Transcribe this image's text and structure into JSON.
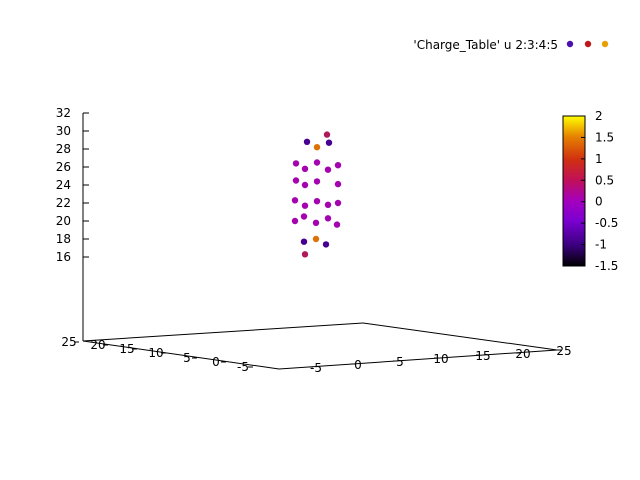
{
  "chart_data": {
    "type": "scatter",
    "subtype": "3d-scatter-colormapped",
    "legend": {
      "label": "'Charge_Table' u 2:3:4:5",
      "position": "top-right"
    },
    "grid": false,
    "x_axis": {
      "range": [
        -8,
        25
      ],
      "ticks": [
        "-5",
        "0",
        "5",
        "10",
        "15",
        "20",
        "25"
      ]
    },
    "y_axis": {
      "range": [
        -8,
        25
      ],
      "ticks": [
        "-5",
        "0",
        "5",
        "10",
        "15",
        "20",
        "25"
      ]
    },
    "z_axis": {
      "range": [
        16,
        32
      ],
      "ticks": [
        "16",
        "18",
        "20",
        "22",
        "24",
        "26",
        "28",
        "30",
        "32"
      ]
    },
    "colorbar": {
      "range": [
        -1.5,
        2
      ],
      "ticks": [
        "-1.5",
        "-1",
        "-0.5",
        "0",
        "0.5",
        "1",
        "1.5",
        "2"
      ]
    },
    "points": [
      {
        "z": 29.6,
        "c": 0.6
      },
      {
        "z": 28.8,
        "c": -0.9
      },
      {
        "z": 28.7,
        "c": -0.9
      },
      {
        "z": 28.2,
        "c": 1.3
      },
      {
        "z": 26.4,
        "c": 0.1
      },
      {
        "z": 26.5,
        "c": 0.1
      },
      {
        "z": 26.2,
        "c": 0.1
      },
      {
        "z": 25.8,
        "c": 0.1
      },
      {
        "z": 25.7,
        "c": 0.1
      },
      {
        "z": 24.5,
        "c": 0.1
      },
      {
        "z": 24.4,
        "c": 0.1
      },
      {
        "z": 24.1,
        "c": 0.1
      },
      {
        "z": 24.0,
        "c": 0.1
      },
      {
        "z": 22.3,
        "c": 0.1
      },
      {
        "z": 22.2,
        "c": 0.1
      },
      {
        "z": 22.0,
        "c": 0.1
      },
      {
        "z": 21.7,
        "c": 0.1
      },
      {
        "z": 21.8,
        "c": 0.1
      },
      {
        "z": 20.5,
        "c": 0.1
      },
      {
        "z": 20.3,
        "c": 0.1
      },
      {
        "z": 20.0,
        "c": 0.1
      },
      {
        "z": 19.8,
        "c": 0.1
      },
      {
        "z": 19.6,
        "c": 0.1
      },
      {
        "z": 18.0,
        "c": 1.3
      },
      {
        "z": 17.7,
        "c": -0.9
      },
      {
        "z": 17.4,
        "c": -0.9
      },
      {
        "z": 16.3,
        "c": 0.6
      }
    ]
  }
}
